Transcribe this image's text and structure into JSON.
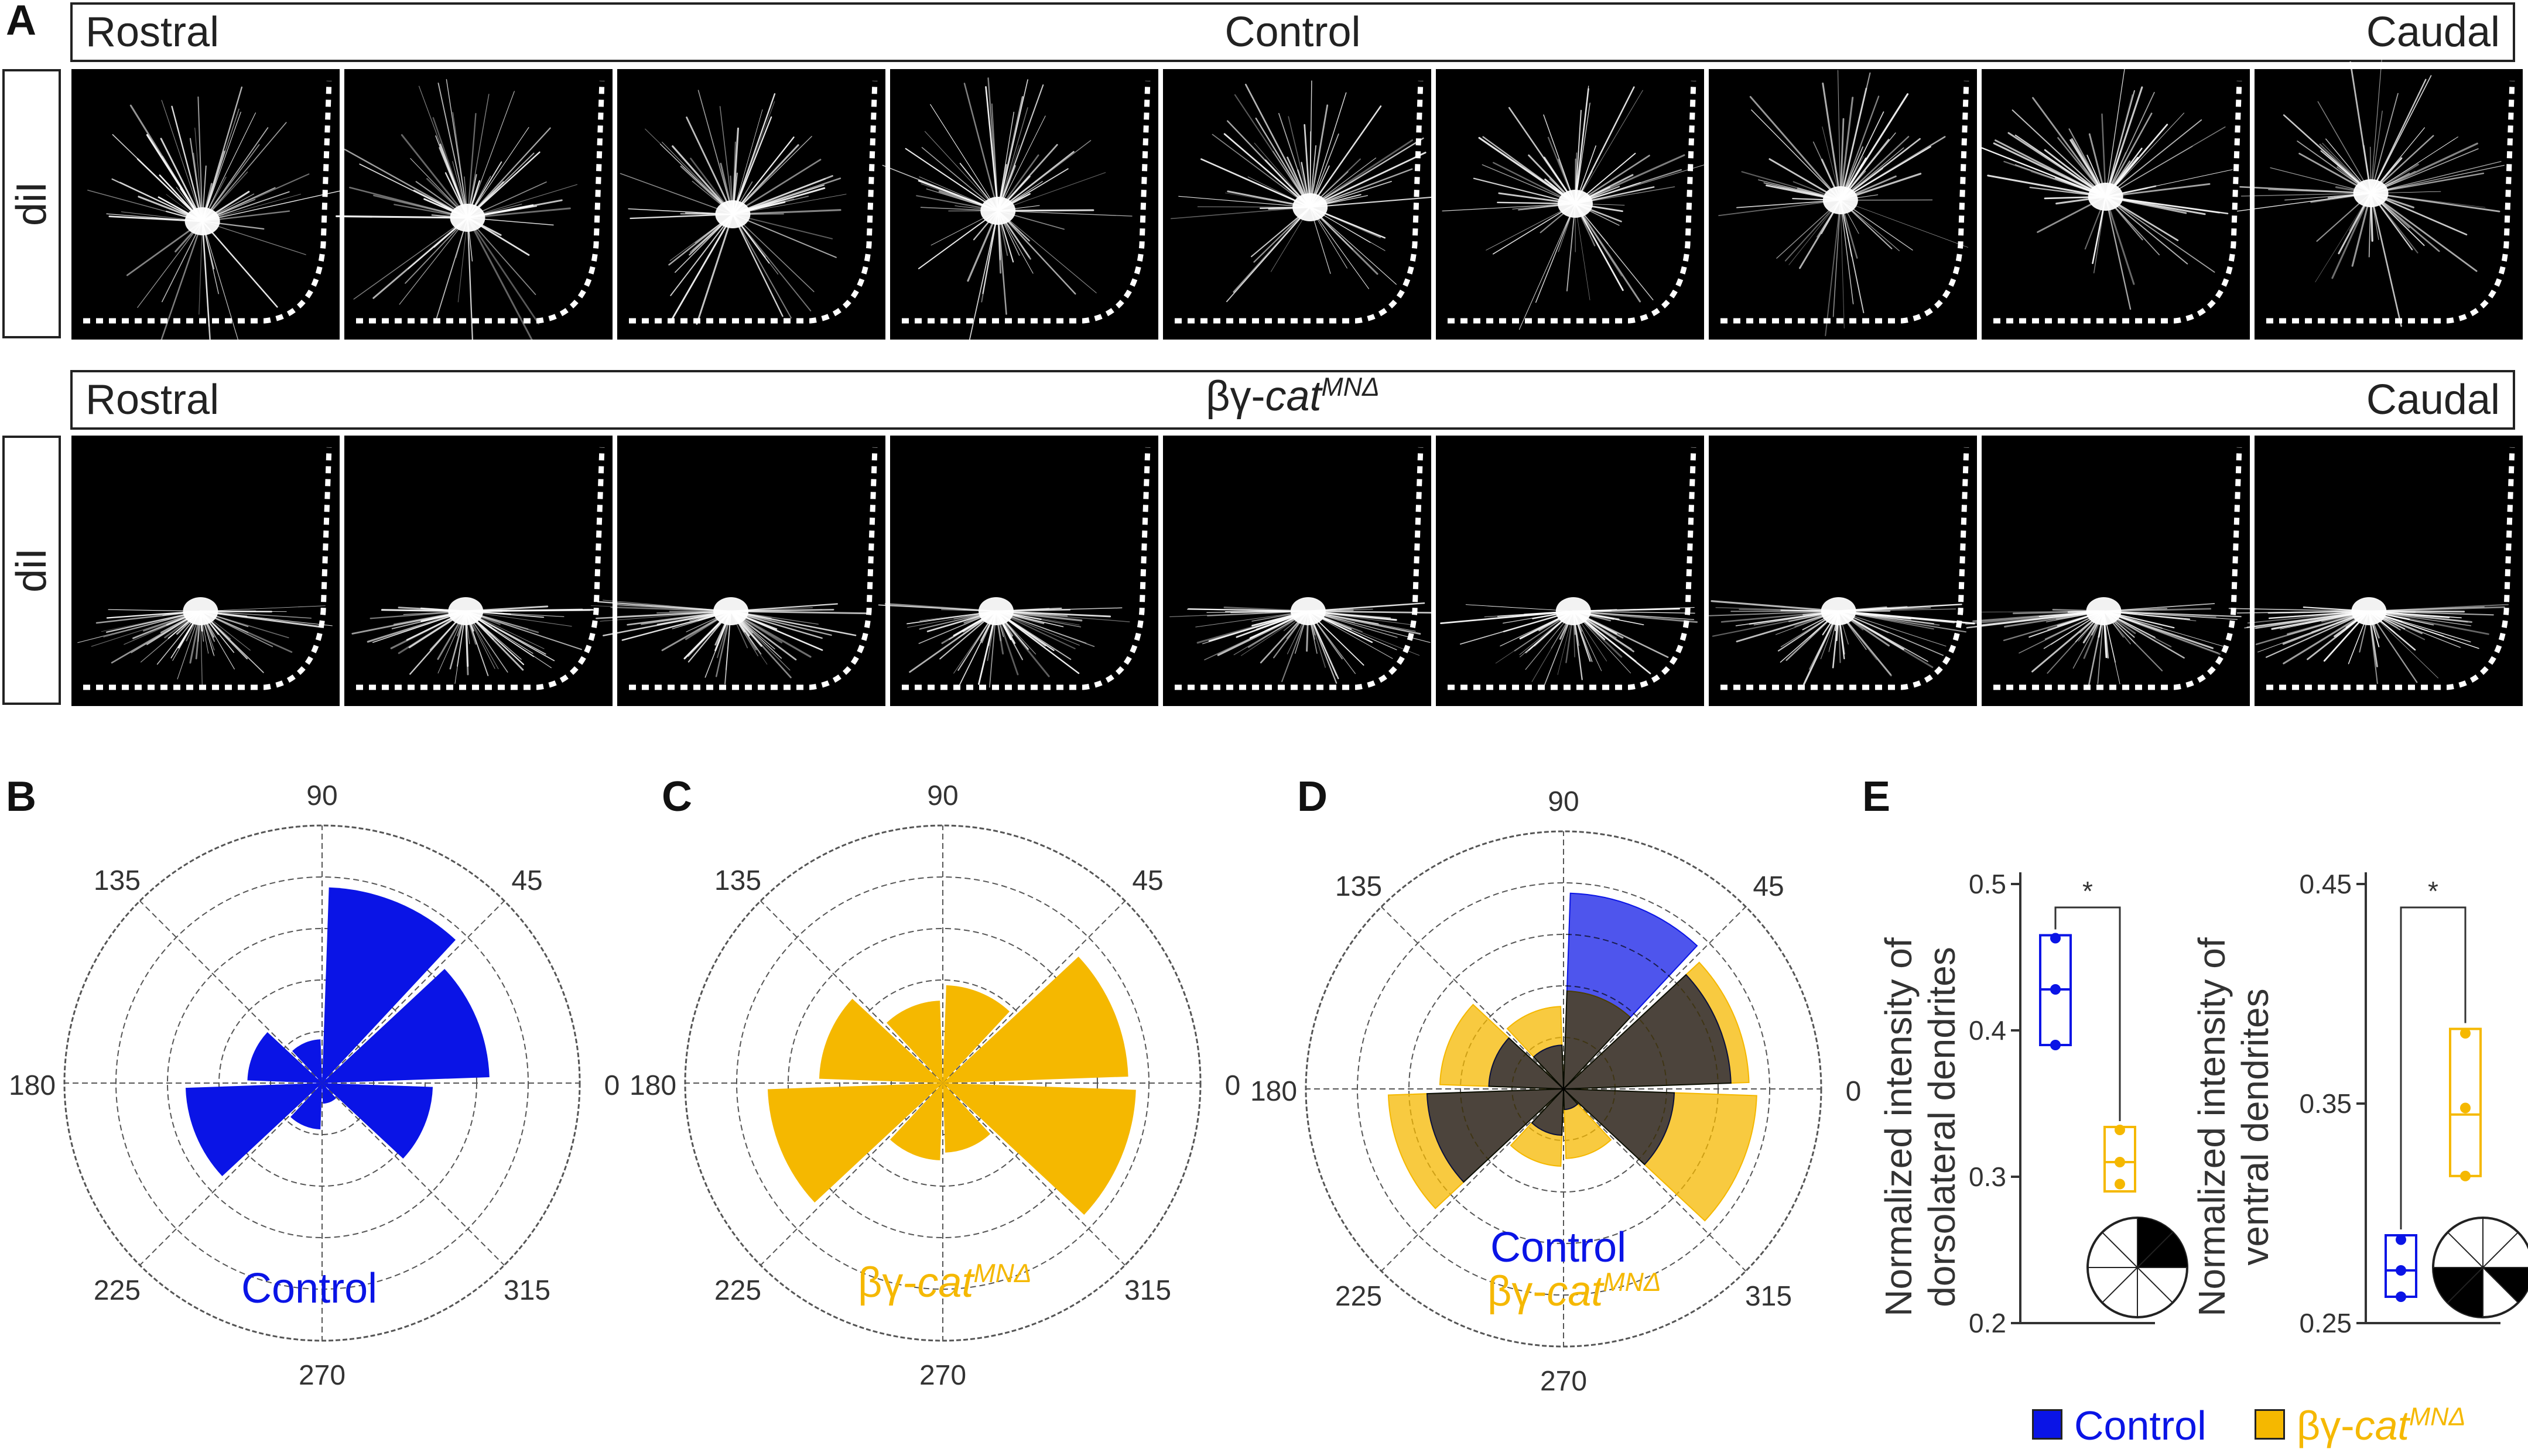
{
  "panel_labels": {
    "A": "A",
    "B": "B",
    "C": "C",
    "D": "D",
    "E": "E"
  },
  "panel_a": {
    "control_row": {
      "left": "Rostral",
      "center": "Control",
      "right": "Caudal",
      "side": "diI"
    },
    "mutant_row": {
      "left": "Rostral",
      "center_prefix": "βγ-",
      "center_italic": "cat",
      "center_sup": "MNΔ",
      "right": "Caudal",
      "side": "diI"
    },
    "tile_count": 9
  },
  "colors": {
    "control": "#0a14e6",
    "mutant": "#f5b800",
    "overlap": "#b59a62",
    "axis": "#555555"
  },
  "chart_data": [
    {
      "id": "B",
      "type": "polar-bar",
      "title": "Control",
      "angle_labels": [
        "90",
        "45",
        "0",
        "315",
        "270",
        "225",
        "180",
        "135"
      ],
      "sector_angles": [
        0,
        45,
        90,
        135,
        180,
        225,
        270,
        315
      ],
      "rings": 5,
      "series": [
        {
          "name": "Control",
          "color": "#0a14e6",
          "wedges": [
            {
              "center_deg": 22.5,
              "value": 0.65
            },
            {
              "center_deg": 67.5,
              "value": 0.76
            },
            {
              "center_deg": 112.5,
              "value": 0.17
            },
            {
              "center_deg": 157.5,
              "value": 0.29
            },
            {
              "center_deg": 202.5,
              "value": 0.53
            },
            {
              "center_deg": 247.5,
              "value": 0.18
            },
            {
              "center_deg": 292.5,
              "value": 0.08
            },
            {
              "center_deg": 337.5,
              "value": 0.43
            }
          ]
        }
      ]
    },
    {
      "id": "C",
      "type": "polar-bar",
      "title": "βγ-cat MNΔ",
      "angle_labels": [
        "90",
        "45",
        "0",
        "315",
        "270",
        "225",
        "180",
        "135"
      ],
      "sector_angles": [
        0,
        45,
        90,
        135,
        180,
        225,
        270,
        315
      ],
      "rings": 5,
      "series": [
        {
          "name": "βγ-cat MNΔ",
          "color": "#f5b800",
          "wedges": [
            {
              "center_deg": 22.5,
              "value": 0.72
            },
            {
              "center_deg": 67.5,
              "value": 0.38
            },
            {
              "center_deg": 112.5,
              "value": 0.32
            },
            {
              "center_deg": 157.5,
              "value": 0.48
            },
            {
              "center_deg": 202.5,
              "value": 0.68
            },
            {
              "center_deg": 247.5,
              "value": 0.3
            },
            {
              "center_deg": 292.5,
              "value": 0.27
            },
            {
              "center_deg": 337.5,
              "value": 0.75
            }
          ]
        }
      ]
    },
    {
      "id": "D",
      "type": "polar-bar",
      "title": "Control vs βγ-cat MNΔ",
      "angle_labels": [
        "90",
        "45",
        "0",
        "315",
        "270",
        "225",
        "180",
        "135"
      ],
      "sector_angles": [
        0,
        45,
        90,
        135,
        180,
        225,
        270,
        315
      ],
      "rings": 5,
      "series": [
        {
          "name": "βγ-cat MNΔ",
          "color": "#f5b800",
          "wedges": [
            {
              "center_deg": 22.5,
              "value": 0.72
            },
            {
              "center_deg": 67.5,
              "value": 0.38
            },
            {
              "center_deg": 112.5,
              "value": 0.32
            },
            {
              "center_deg": 157.5,
              "value": 0.48
            },
            {
              "center_deg": 202.5,
              "value": 0.68
            },
            {
              "center_deg": 247.5,
              "value": 0.3
            },
            {
              "center_deg": 292.5,
              "value": 0.27
            },
            {
              "center_deg": 337.5,
              "value": 0.75
            }
          ]
        },
        {
          "name": "Control",
          "color": "#0a14e6",
          "wedges": [
            {
              "center_deg": 22.5,
              "value": 0.65
            },
            {
              "center_deg": 67.5,
              "value": 0.76
            },
            {
              "center_deg": 112.5,
              "value": 0.17
            },
            {
              "center_deg": 157.5,
              "value": 0.29
            },
            {
              "center_deg": 202.5,
              "value": 0.53
            },
            {
              "center_deg": 247.5,
              "value": 0.18
            },
            {
              "center_deg": 292.5,
              "value": 0.08
            },
            {
              "center_deg": 337.5,
              "value": 0.43
            }
          ]
        }
      ],
      "legend": [
        "Control",
        "βγ-cat MNΔ"
      ]
    },
    {
      "id": "E1",
      "type": "boxplot",
      "ylabel": "Normalized intensity of dorsolateral dendrites",
      "ylim": [
        0.2,
        0.5
      ],
      "yticks": [
        "0.2",
        "0.3",
        "0.4",
        "0.5"
      ],
      "significance": "*",
      "groups": [
        {
          "name": "Control",
          "color": "#0a14e6",
          "points": [
            0.39,
            0.428,
            0.463
          ],
          "q1": 0.39,
          "median": 0.428,
          "q3": 0.465,
          "mean": 0.428
        },
        {
          "name": "βγ-cat MNΔ",
          "color": "#f5b800",
          "points": [
            0.295,
            0.31,
            0.332
          ],
          "q1": 0.29,
          "median": 0.31,
          "q3": 0.334,
          "mean": 0.312
        }
      ],
      "sector_icon": "upper-right"
    },
    {
      "id": "E2",
      "type": "boxplot",
      "ylabel": "Normalized intensity of ventral dendrites",
      "ylim": [
        0.25,
        0.45
      ],
      "yticks": [
        "0.25",
        "0.35",
        "0.45"
      ],
      "significance": "*",
      "groups": [
        {
          "name": "Control",
          "color": "#0a14e6",
          "points": [
            0.262,
            0.274,
            0.288
          ],
          "q1": 0.262,
          "median": 0.274,
          "q3": 0.29,
          "mean": 0.275
        },
        {
          "name": "βγ-cat MNΔ",
          "color": "#f5b800",
          "points": [
            0.317,
            0.348,
            0.382
          ],
          "q1": 0.317,
          "median": 0.345,
          "q3": 0.384,
          "mean": 0.349
        }
      ],
      "sector_icon": "lower-sides"
    }
  ],
  "legend_e": {
    "control": "Control",
    "mutant_prefix": "βγ-",
    "mutant_italic": "cat",
    "mutant_sup": "MNΔ"
  },
  "legend_b": "Control",
  "legend_c": {
    "prefix": "βγ-",
    "italic": "cat",
    "sup": "MNΔ"
  },
  "legend_d": {
    "control": "Control",
    "mutant_prefix": "βγ-",
    "mutant_italic": "cat",
    "mutant_sup": "MNΔ"
  }
}
